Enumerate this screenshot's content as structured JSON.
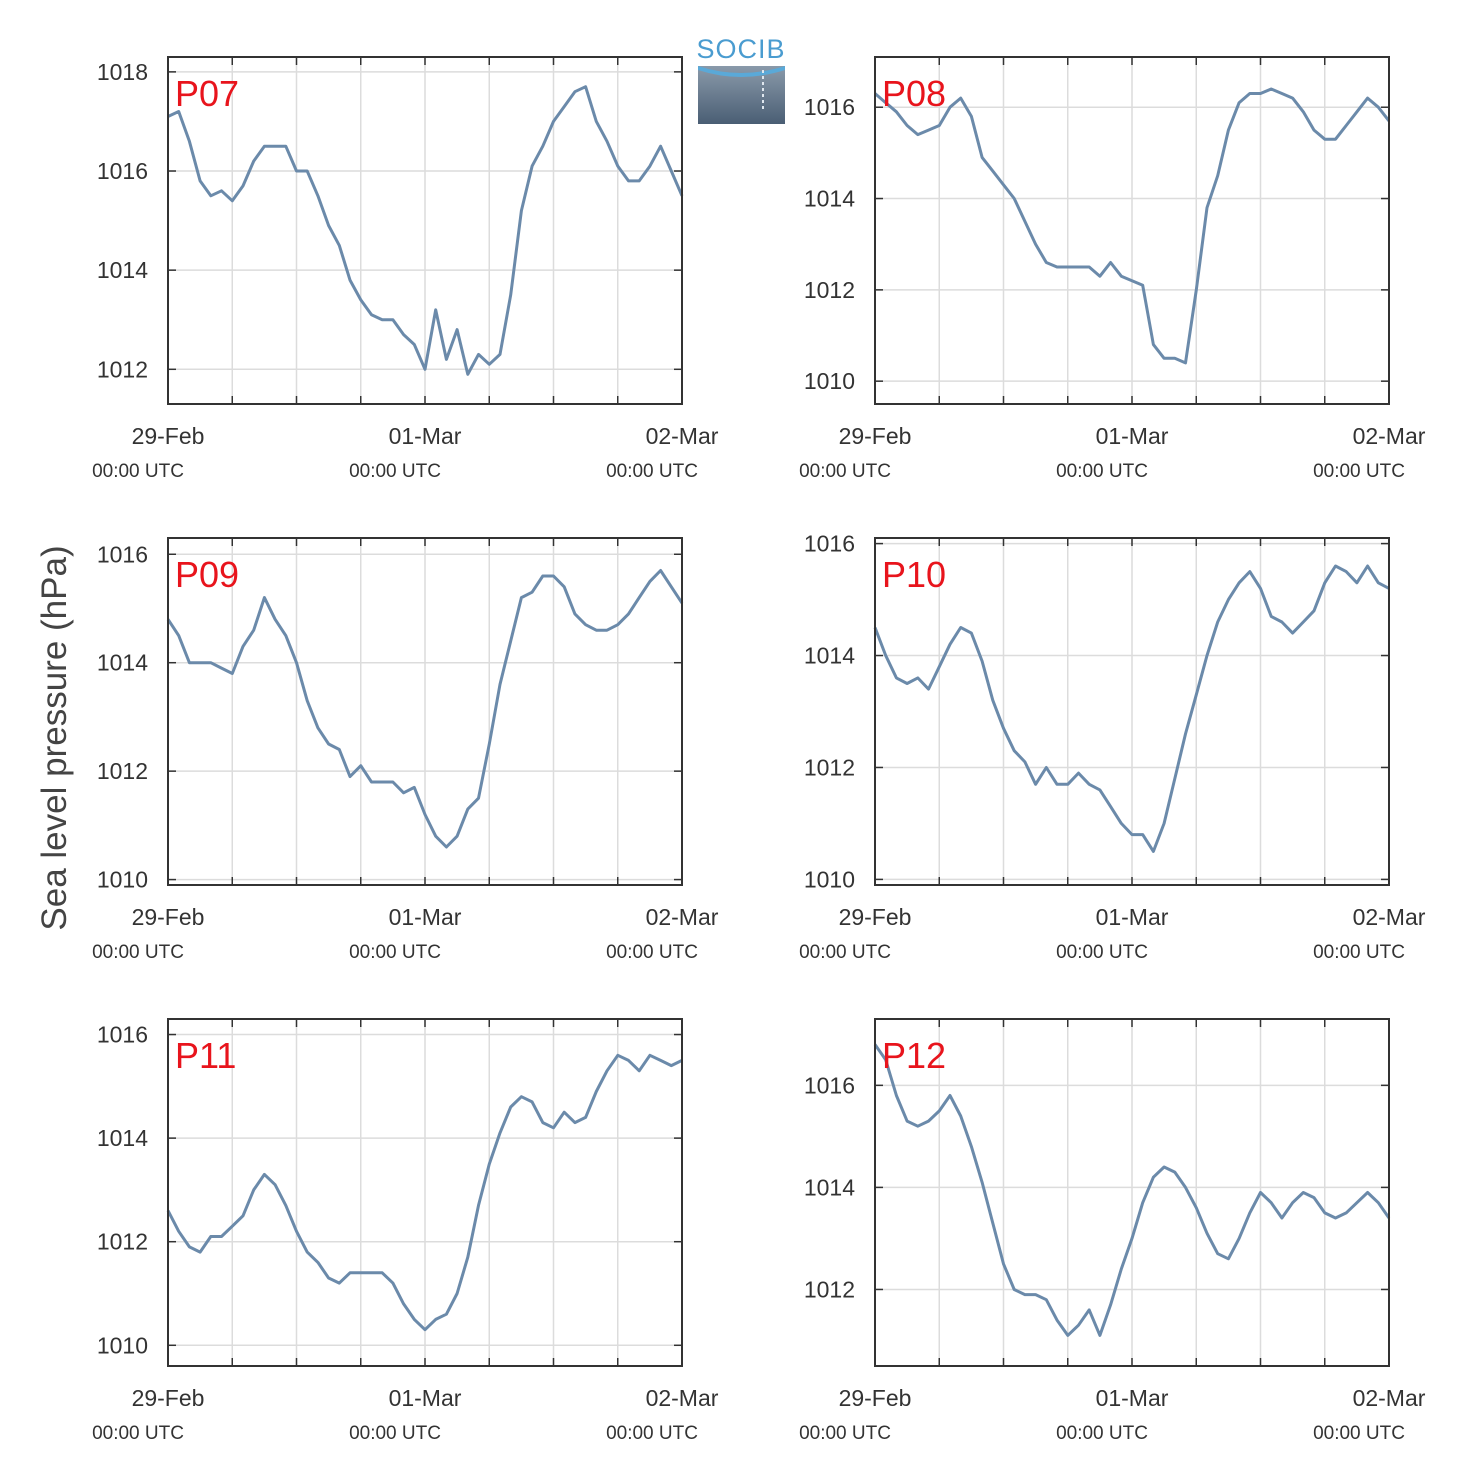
{
  "figure": {
    "ylabel": "Sea level pressure (hPa)",
    "logo_text": "SOCIB",
    "line_color": "#6b8aaa",
    "label_color": "#e8141c"
  },
  "chart_data": [
    {
      "type": "line",
      "station": "P07",
      "x_ticks": [
        {
          "label": "29-Feb",
          "sub": "00:00 UTC"
        },
        {
          "label": "01-Mar",
          "sub": "00:00 UTC"
        },
        {
          "label": "02-Mar",
          "sub": "00:00 UTC"
        }
      ],
      "ylim": [
        1011.3,
        1018.3
      ],
      "yticks": [
        1012,
        1014,
        1016,
        1018
      ],
      "grid": true,
      "x_hours": [
        0,
        1,
        2,
        3,
        4,
        5,
        6,
        7,
        8,
        9,
        10,
        11,
        12,
        13,
        14,
        15,
        16,
        17,
        18,
        19,
        20,
        21,
        22,
        23,
        24,
        25,
        26,
        27,
        28,
        29,
        30,
        31,
        32,
        33,
        34,
        35,
        36,
        37,
        38,
        39,
        40,
        41,
        42,
        43,
        44,
        45,
        46,
        47,
        48
      ],
      "values": [
        1017.1,
        1017.2,
        1016.6,
        1015.8,
        1015.5,
        1015.6,
        1015.4,
        1015.7,
        1016.2,
        1016.5,
        1016.5,
        1016.5,
        1016.0,
        1016.0,
        1015.5,
        1014.9,
        1014.5,
        1013.8,
        1013.4,
        1013.1,
        1013.0,
        1013.0,
        1012.7,
        1012.5,
        1012.0,
        1013.2,
        1012.2,
        1012.8,
        1011.9,
        1012.3,
        1012.1,
        1012.3,
        1013.5,
        1015.2,
        1016.1,
        1016.5,
        1017.0,
        1017.3,
        1017.6,
        1017.7,
        1017.0,
        1016.6,
        1016.1,
        1015.8,
        1015.8,
        1016.1,
        1016.5,
        1016.0,
        1015.5
      ]
    },
    {
      "type": "line",
      "station": "P08",
      "x_ticks": [
        {
          "label": "29-Feb",
          "sub": "00:00 UTC"
        },
        {
          "label": "01-Mar",
          "sub": "00:00 UTC"
        },
        {
          "label": "02-Mar",
          "sub": "00:00 UTC"
        }
      ],
      "ylim": [
        1009.5,
        1017.1
      ],
      "yticks": [
        1010,
        1012,
        1014,
        1016
      ],
      "grid": true,
      "x_hours": [
        0,
        1,
        2,
        3,
        4,
        5,
        6,
        7,
        8,
        9,
        10,
        11,
        12,
        13,
        14,
        15,
        16,
        17,
        18,
        19,
        20,
        21,
        22,
        23,
        24,
        25,
        26,
        27,
        28,
        29,
        30,
        31,
        32,
        33,
        34,
        35,
        36,
        37,
        38,
        39,
        40,
        41,
        42,
        43,
        44,
        45,
        46,
        47,
        48
      ],
      "values": [
        1016.3,
        1016.1,
        1015.9,
        1015.6,
        1015.4,
        1015.5,
        1015.6,
        1016.0,
        1016.2,
        1015.8,
        1014.9,
        1014.6,
        1014.3,
        1014.0,
        1013.5,
        1013.0,
        1012.6,
        1012.5,
        1012.5,
        1012.5,
        1012.5,
        1012.3,
        1012.6,
        1012.3,
        1012.2,
        1012.1,
        1010.8,
        1010.5,
        1010.5,
        1010.4,
        1012.0,
        1013.8,
        1014.5,
        1015.5,
        1016.1,
        1016.3,
        1016.3,
        1016.4,
        1016.3,
        1016.2,
        1015.9,
        1015.5,
        1015.3,
        1015.3,
        1015.6,
        1015.9,
        1016.2,
        1016.0,
        1015.7
      ]
    },
    {
      "type": "line",
      "station": "P09",
      "x_ticks": [
        {
          "label": "29-Feb",
          "sub": "00:00 UTC"
        },
        {
          "label": "01-Mar",
          "sub": "00:00 UTC"
        },
        {
          "label": "02-Mar",
          "sub": "00:00 UTC"
        }
      ],
      "ylim": [
        1009.9,
        1016.3
      ],
      "yticks": [
        1010,
        1012,
        1014,
        1016
      ],
      "grid": true,
      "x_hours": [
        0,
        1,
        2,
        3,
        4,
        5,
        6,
        7,
        8,
        9,
        10,
        11,
        12,
        13,
        14,
        15,
        16,
        17,
        18,
        19,
        20,
        21,
        22,
        23,
        24,
        25,
        26,
        27,
        28,
        29,
        30,
        31,
        32,
        33,
        34,
        35,
        36,
        37,
        38,
        39,
        40,
        41,
        42,
        43,
        44,
        45,
        46,
        47,
        48
      ],
      "values": [
        1014.8,
        1014.5,
        1014.0,
        1014.0,
        1014.0,
        1013.9,
        1013.8,
        1014.3,
        1014.6,
        1015.2,
        1014.8,
        1014.5,
        1014.0,
        1013.3,
        1012.8,
        1012.5,
        1012.4,
        1011.9,
        1012.1,
        1011.8,
        1011.8,
        1011.8,
        1011.6,
        1011.7,
        1011.2,
        1010.8,
        1010.6,
        1010.8,
        1011.3,
        1011.5,
        1012.5,
        1013.6,
        1014.4,
        1015.2,
        1015.3,
        1015.6,
        1015.6,
        1015.4,
        1014.9,
        1014.7,
        1014.6,
        1014.6,
        1014.7,
        1014.9,
        1015.2,
        1015.5,
        1015.7,
        1015.4,
        1015.1
      ]
    },
    {
      "type": "line",
      "station": "P10",
      "x_ticks": [
        {
          "label": "29-Feb",
          "sub": "00:00 UTC"
        },
        {
          "label": "01-Mar",
          "sub": "00:00 UTC"
        },
        {
          "label": "02-Mar",
          "sub": "00:00 UTC"
        }
      ],
      "ylim": [
        1009.9,
        1016.1
      ],
      "yticks": [
        1010,
        1012,
        1014,
        1016
      ],
      "grid": true,
      "x_hours": [
        0,
        1,
        2,
        3,
        4,
        5,
        6,
        7,
        8,
        9,
        10,
        11,
        12,
        13,
        14,
        15,
        16,
        17,
        18,
        19,
        20,
        21,
        22,
        23,
        24,
        25,
        26,
        27,
        28,
        29,
        30,
        31,
        32,
        33,
        34,
        35,
        36,
        37,
        38,
        39,
        40,
        41,
        42,
        43,
        44,
        45,
        46,
        47,
        48
      ],
      "values": [
        1014.5,
        1014.0,
        1013.6,
        1013.5,
        1013.6,
        1013.4,
        1013.8,
        1014.2,
        1014.5,
        1014.4,
        1013.9,
        1013.2,
        1012.7,
        1012.3,
        1012.1,
        1011.7,
        1012.0,
        1011.7,
        1011.7,
        1011.9,
        1011.7,
        1011.6,
        1011.3,
        1011.0,
        1010.8,
        1010.8,
        1010.5,
        1011.0,
        1011.8,
        1012.6,
        1013.3,
        1014.0,
        1014.6,
        1015.0,
        1015.3,
        1015.5,
        1015.2,
        1014.7,
        1014.6,
        1014.4,
        1014.6,
        1014.8,
        1015.3,
        1015.6,
        1015.5,
        1015.3,
        1015.6,
        1015.3,
        1015.2
      ]
    },
    {
      "type": "line",
      "station": "P11",
      "x_ticks": [
        {
          "label": "29-Feb",
          "sub": "00:00 UTC"
        },
        {
          "label": "01-Mar",
          "sub": "00:00 UTC"
        },
        {
          "label": "02-Mar",
          "sub": "00:00 UTC"
        }
      ],
      "ylim": [
        1009.6,
        1016.3
      ],
      "yticks": [
        1010,
        1012,
        1014,
        1016
      ],
      "grid": true,
      "x_hours": [
        0,
        1,
        2,
        3,
        4,
        5,
        6,
        7,
        8,
        9,
        10,
        11,
        12,
        13,
        14,
        15,
        16,
        17,
        18,
        19,
        20,
        21,
        22,
        23,
        24,
        25,
        26,
        27,
        28,
        29,
        30,
        31,
        32,
        33,
        34,
        35,
        36,
        37,
        38,
        39,
        40,
        41,
        42,
        43,
        44,
        45,
        46,
        47,
        48
      ],
      "values": [
        1012.6,
        1012.2,
        1011.9,
        1011.8,
        1012.1,
        1012.1,
        1012.3,
        1012.5,
        1013.0,
        1013.3,
        1013.1,
        1012.7,
        1012.2,
        1011.8,
        1011.6,
        1011.3,
        1011.2,
        1011.4,
        1011.4,
        1011.4,
        1011.4,
        1011.2,
        1010.8,
        1010.5,
        1010.3,
        1010.5,
        1010.6,
        1011.0,
        1011.7,
        1012.7,
        1013.5,
        1014.1,
        1014.6,
        1014.8,
        1014.7,
        1014.3,
        1014.2,
        1014.5,
        1014.3,
        1014.4,
        1014.9,
        1015.3,
        1015.6,
        1015.5,
        1015.3,
        1015.6,
        1015.5,
        1015.4,
        1015.5
      ]
    },
    {
      "type": "line",
      "station": "P12",
      "x_ticks": [
        {
          "label": "29-Feb",
          "sub": "00:00 UTC"
        },
        {
          "label": "01-Mar",
          "sub": "00:00 UTC"
        },
        {
          "label": "02-Mar",
          "sub": "00:00 UTC"
        }
      ],
      "ylim": [
        1010.5,
        1017.3
      ],
      "yticks": [
        1012,
        1014,
        1016
      ],
      "grid": true,
      "x_hours": [
        0,
        1,
        2,
        3,
        4,
        5,
        6,
        7,
        8,
        9,
        10,
        11,
        12,
        13,
        14,
        15,
        16,
        17,
        18,
        19,
        20,
        21,
        22,
        23,
        24,
        25,
        26,
        27,
        28,
        29,
        30,
        31,
        32,
        33,
        34,
        35,
        36,
        37,
        38,
        39,
        40,
        41,
        42,
        43,
        44,
        45,
        46,
        47,
        48
      ],
      "values": [
        1016.8,
        1016.5,
        1015.8,
        1015.3,
        1015.2,
        1015.3,
        1015.5,
        1015.8,
        1015.4,
        1014.8,
        1014.1,
        1013.3,
        1012.5,
        1012.0,
        1011.9,
        1011.9,
        1011.8,
        1011.4,
        1011.1,
        1011.3,
        1011.6,
        1011.1,
        1011.7,
        1012.4,
        1013.0,
        1013.7,
        1014.2,
        1014.4,
        1014.3,
        1014.0,
        1013.6,
        1013.1,
        1012.7,
        1012.6,
        1013.0,
        1013.5,
        1013.9,
        1013.7,
        1013.4,
        1013.7,
        1013.9,
        1013.8,
        1013.5,
        1013.4,
        1013.5,
        1013.7,
        1013.9,
        1013.7,
        1013.4
      ]
    }
  ]
}
